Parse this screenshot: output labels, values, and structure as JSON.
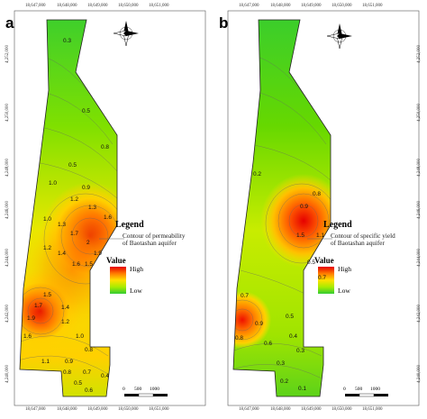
{
  "panels": [
    {
      "id": "a",
      "label": "a",
      "x_ticks": [
        "18,647,000",
        "18,648,000",
        "18,649,000",
        "18,650,000",
        "18,651,000"
      ],
      "y_ticks": [
        "4,252,000",
        "4,250,000",
        "4,248,000",
        "4,246,000",
        "4,244,000",
        "4,242,000",
        "4,240,000"
      ],
      "legend_title": "Legend",
      "legend_desc_1": "Contour of permeability",
      "legend_desc_2": "of Baotashan aquifer",
      "value_title": "Value",
      "ramp_high": "High",
      "ramp_low": "Low",
      "scale_labels": [
        "0",
        "500",
        "1000"
      ],
      "contour_labels": [
        "0.3",
        "0.5",
        "0.8",
        "0.5",
        "0.9",
        "1.0",
        "1.2",
        "1.3",
        "1.6",
        "1.0",
        "1.3",
        "1.7",
        "2",
        "1.2",
        "1.4",
        "1.9",
        "1.6",
        "1.5",
        "1.5",
        "1.7",
        "1.9",
        "1.6",
        "1.4",
        "1.2",
        "1.0",
        "0.8",
        "1.1",
        "0.9",
        "0.8",
        "0.7",
        "0.4",
        "0.5",
        "0.6"
      ]
    },
    {
      "id": "b",
      "label": "b",
      "x_ticks": [
        "18,647,000",
        "18,648,000",
        "18,649,000",
        "18,650,000",
        "18,651,000"
      ],
      "y_ticks": [
        "4,252,000",
        "4,250,000",
        "4,248,000",
        "4,246,000",
        "4,244,000",
        "4,242,000",
        "4,240,000"
      ],
      "legend_title": "Legend",
      "legend_desc_1": "Contour of specific yield",
      "legend_desc_2": "of Baotashan aquifer",
      "value_title": "Value",
      "ramp_high": "High",
      "ramp_low": "Low",
      "scale_labels": [
        "0",
        "500",
        "1000"
      ],
      "contour_labels": [
        "0.2",
        "0.8",
        "0.9",
        "1.5",
        "1.1",
        "0.5",
        "0.7",
        "0.7",
        "0.9",
        "0.8",
        "0.6",
        "0.5",
        "0.4",
        "0.3",
        "0.3",
        "0.2",
        "0.1"
      ]
    }
  ]
}
